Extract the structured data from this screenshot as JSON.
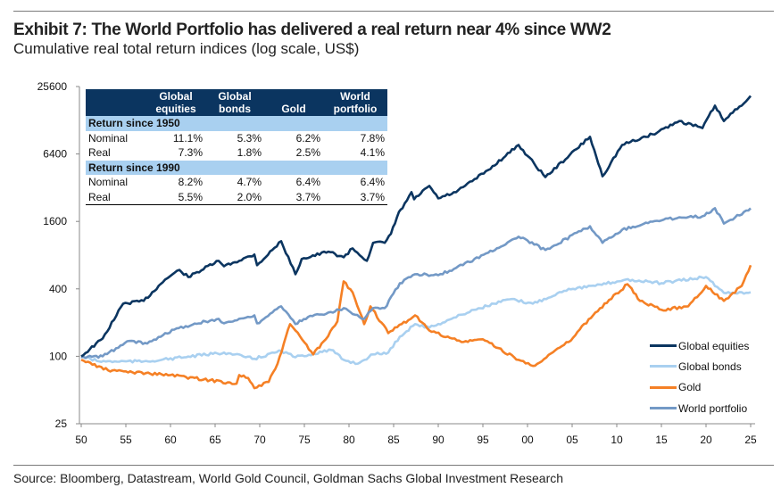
{
  "title": "Exhibit 7: The World Portfolio has delivered a real return near 4% since WW2",
  "subtitle": "Cumulative real total return indices (log scale, US$)",
  "source": "Source: Bloomberg, Datastream, World Gold Council, Goldman Sachs Global Investment Research",
  "table": {
    "headers": [
      "",
      "Global equities",
      "Global bonds",
      "Gold",
      "World portfolio"
    ],
    "sections": [
      {
        "label": "Return since 1950",
        "rows": [
          {
            "label": "Nominal",
            "values": [
              "11.1%",
              "5.3%",
              "6.2%",
              "7.8%"
            ]
          },
          {
            "label": "Real",
            "values": [
              "7.3%",
              "1.8%",
              "2.5%",
              "4.1%"
            ]
          }
        ]
      },
      {
        "label": "Return since 1990",
        "rows": [
          {
            "label": "Nominal",
            "values": [
              "8.2%",
              "4.7%",
              "6.4%",
              "6.4%"
            ]
          },
          {
            "label": "Real",
            "values": [
              "5.5%",
              "2.0%",
              "3.7%",
              "3.7%"
            ]
          }
        ]
      }
    ]
  },
  "chart_data": {
    "type": "line",
    "title": "Exhibit 7: The World Portfolio has delivered a real return near 4% since WW2",
    "ylabel": "Cumulative real total return index (log scale, US$)",
    "yscale": "log",
    "ylim": [
      25,
      25600
    ],
    "yticks": [
      25,
      100,
      400,
      1600,
      6400,
      25600
    ],
    "ytick_labels": [
      "25",
      "100",
      "400",
      "1600",
      "6400",
      "25600"
    ],
    "xlim": [
      1950,
      2025.5
    ],
    "xticks": [
      1950,
      1955,
      1960,
      1965,
      1970,
      1975,
      1980,
      1985,
      1990,
      1995,
      2000,
      2005,
      2010,
      2015,
      2020,
      2025
    ],
    "xtick_labels": [
      "50",
      "55",
      "60",
      "65",
      "70",
      "75",
      "80",
      "85",
      "90",
      "95",
      "00",
      "05",
      "10",
      "15",
      "20",
      "25"
    ],
    "legend_position": "bottom-right",
    "series": [
      {
        "name": "Global equities",
        "color": "#0b3560",
        "x": [
          1950,
          1952.4,
          1954.7,
          1957,
          1959.4,
          1961,
          1962,
          1965.4,
          1966,
          1969.4,
          1969.7,
          1972.4,
          1974,
          1974.7,
          1977.7,
          1979.4,
          1980.4,
          1982,
          1982.7,
          1984,
          1984.7,
          1985.6,
          1986,
          1987,
          1987.3,
          1989,
          1990,
          1992,
          1995.6,
          1999,
          2002,
          2007,
          2008.4,
          2010.6,
          2014,
          2017,
          2019.6,
          2021,
          2022,
          2025
        ],
        "y": [
          100,
          144,
          295,
          312,
          484,
          590,
          510,
          712,
          636,
          810,
          650,
          1065,
          540,
          740,
          860,
          765,
          920,
          712,
          1030,
          1030,
          1240,
          1950,
          2100,
          2920,
          2520,
          3320,
          2570,
          2920,
          4600,
          7700,
          3980,
          9100,
          4050,
          7700,
          9600,
          12600,
          10900,
          17300,
          12600,
          21100
        ]
      },
      {
        "name": "Global bonds",
        "color": "#a9d0f0",
        "x": [
          1950,
          1952,
          1957,
          1959,
          1966,
          1969.4,
          1972.4,
          1974,
          1978,
          1979.4,
          1981,
          1982.7,
          1984.4,
          1985.7,
          1987.4,
          1989,
          1994,
          1998,
          2000.6,
          2004.6,
          2007.6,
          2011,
          2015,
          2020,
          2022,
          2025
        ],
        "y": [
          100,
          90,
          90,
          93,
          108,
          95,
          112,
          98,
          114,
          93,
          86,
          104,
          108,
          150,
          194,
          180,
          260,
          323,
          295,
          400,
          425,
          484,
          450,
          510,
          368,
          373
        ]
      },
      {
        "name": "Gold",
        "color": "#f58025",
        "x": [
          1950,
          1953,
          1960,
          1967.4,
          1967.7,
          1968.7,
          1969.4,
          1971,
          1972,
          1973.4,
          1974,
          1976,
          1977.4,
          1978.7,
          1979.4,
          1980.4,
          1981.7,
          1982.4,
          1984.4,
          1987.4,
          1989,
          1992.6,
          1995,
          1999,
          2000.6,
          2004.6,
          2007.6,
          2011.2,
          2012.6,
          2015,
          2018,
          2020,
          2022,
          2024,
          2025
        ],
        "y": [
          93,
          75,
          68,
          57,
          68,
          64,
          52,
          59,
          86,
          194,
          170,
          104,
          142,
          205,
          467,
          373,
          194,
          279,
          161,
          232,
          170,
          134,
          142,
          93,
          82,
          134,
          246,
          440,
          312,
          260,
          279,
          425,
          312,
          425,
          650
        ]
      },
      {
        "name": "World portfolio",
        "color": "#7399c6",
        "x": [
          1950,
          1952.4,
          1955.4,
          1957.4,
          1959.4,
          1961.7,
          1965.4,
          1966,
          1969.4,
          1969.7,
          1972.4,
          1974,
          1975.4,
          1977.7,
          1979.4,
          1981.7,
          1982.7,
          1984,
          1985.7,
          1987.4,
          1990,
          1992,
          1995.6,
          1999,
          2002,
          2007,
          2008.4,
          2010.6,
          2014,
          2017,
          2019.6,
          2021,
          2022,
          2025
        ],
        "y": [
          98,
          100,
          137,
          130,
          161,
          186,
          216,
          197,
          232,
          197,
          279,
          194,
          224,
          246,
          269,
          216,
          269,
          269,
          450,
          540,
          530,
          615,
          840,
          1170,
          890,
          1450,
          1030,
          1350,
          1590,
          1740,
          1780,
          2100,
          1530,
          2100
        ]
      }
    ]
  }
}
